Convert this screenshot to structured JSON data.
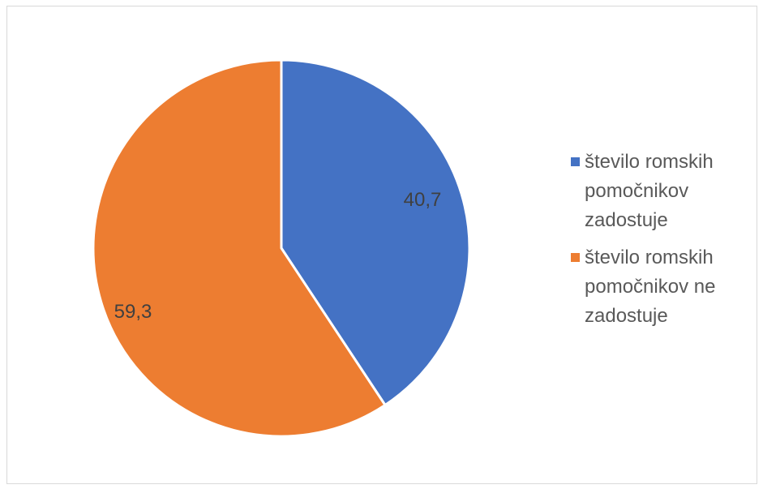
{
  "chart_data": {
    "type": "pie",
    "categories": [
      "število romskih pomočnikov zadostuje",
      "število romskih pomočnikov ne zadostuje"
    ],
    "values": [
      40.7,
      59.3
    ],
    "value_labels": [
      "40,7",
      "59,3"
    ],
    "colors": [
      "#4472c4",
      "#ed7d31"
    ],
    "title": "",
    "legend_position": "right"
  }
}
